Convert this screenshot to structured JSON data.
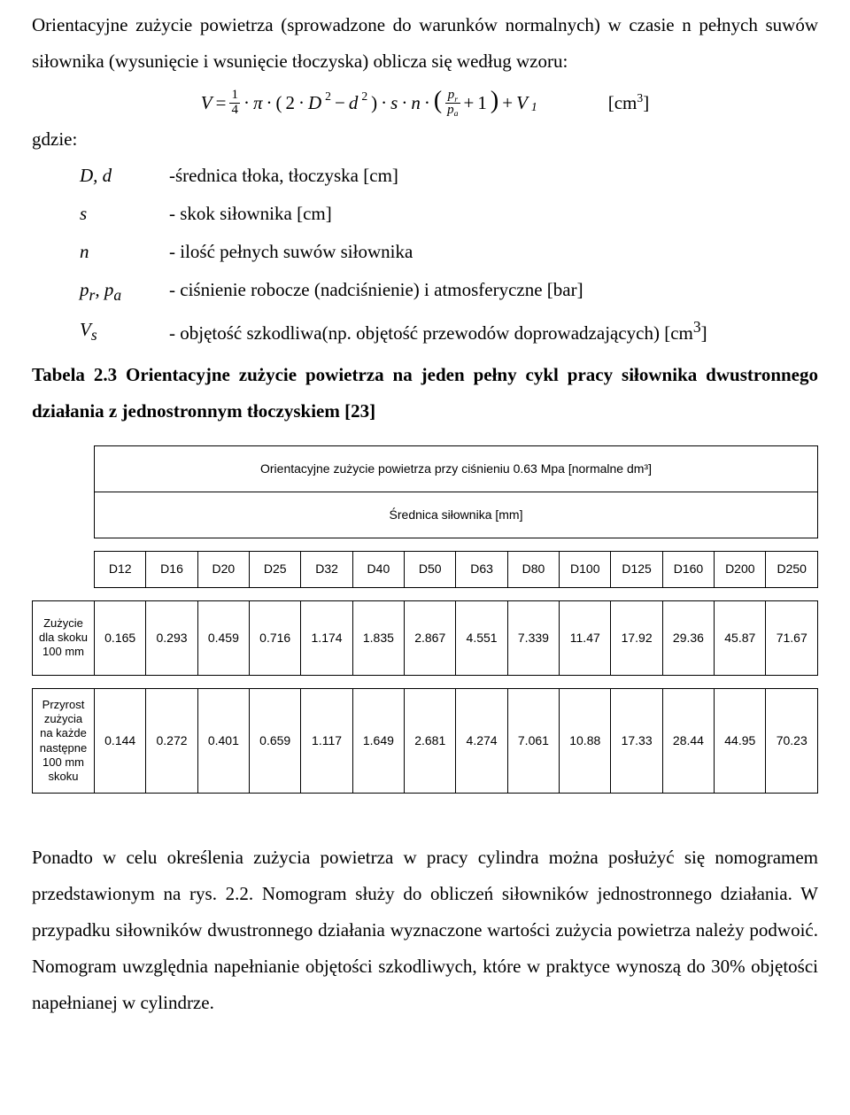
{
  "text": {
    "intro": "Orientacyjne zużycie powietrza (sprowadzone do warunków normalnych) w czasie n pełnych suwów siłownika (wysunięcie i wsunięcie tłoczyska) oblicza się według wzoru:",
    "gdzie": "gdzie:",
    "unit": "[cm",
    "unit_sup": "3",
    "unit_close": "]"
  },
  "formula": {
    "V": "V",
    "eq": "=",
    "frac1_num": "1",
    "frac1_den": "4",
    "dot": "·",
    "pi": "π",
    "lparen": "(",
    "two": "2",
    "D": "D",
    "sq": "2",
    "minus": "−",
    "d": "d",
    "rparen": ")",
    "s": "s",
    "n": "n",
    "bigl": "(",
    "pr_num": "p",
    "pr_num_sub": "r",
    "pa_den": "p",
    "pa_den_sub": "a",
    "plus": "+",
    "one": "1",
    "bigr": ")",
    "V1": "V",
    "V1_sub": "1"
  },
  "defs": [
    {
      "sym": "D, d",
      "txt": "-średnica tłoka, tłoczyska [cm]"
    },
    {
      "sym": "s",
      "txt": "- skok siłownika [cm]"
    },
    {
      "sym": "n",
      "txt": "- ilość pełnych suwów siłownika"
    },
    {
      "sym": "p<sub>r</sub>, p<sub>a</sub>",
      "txt": "- ciśnienie robocze (nadciśnienie) i atmosferyczne [bar]"
    },
    {
      "sym": "V<sub>s</sub>",
      "txt": "- objętość szkodliwa(np. objętość przewodów doprowadzających) [cm<sup>3</sup>]"
    }
  ],
  "caption": "Tabela 2.3 Orientacyjne zużycie powietrza na jeden pełny cykl pracy siłownika dwustronnego działania z jednostronnym tłoczyskiem [23]",
  "table": {
    "title": "Orientacyjne zużycie powietrza przy ciśnieniu 0.63 Mpa [normalne dm³]",
    "subtitle": "Średnica siłownika [mm]",
    "columns": [
      "D12",
      "D16",
      "D20",
      "D25",
      "D32",
      "D40",
      "D50",
      "D63",
      "D80",
      "D100",
      "D125",
      "D160",
      "D200",
      "D250"
    ],
    "rows": [
      {
        "header": "Zużycie dla skoku 100 mm",
        "values": [
          "0.165",
          "0.293",
          "0.459",
          "0.716",
          "1.174",
          "1.835",
          "2.867",
          "4.551",
          "7.339",
          "11.47",
          "17.92",
          "29.36",
          "45.87",
          "71.67"
        ]
      },
      {
        "header": "Przyrost zużycia na każde następne 100 mm skoku",
        "values": [
          "0.144",
          "0.272",
          "0.401",
          "0.659",
          "1.117",
          "1.649",
          "2.681",
          "4.274",
          "7.061",
          "10.88",
          "17.33",
          "28.44",
          "44.95",
          "70.23"
        ]
      }
    ]
  },
  "para2": "Ponadto w celu określenia zużycia powietrza w pracy cylindra można posłużyć się nomogramem przedstawionym na rys. 2.2. Nomogram służy do obliczeń siłowników jednostronnego działania. W przypadku siłowników dwustronnego działania wyznaczone wartości zużycia powietrza należy podwoić. Nomogram uwzględnia napełnianie objętości szkodliwych, które w praktyce wynoszą do 30% objętości napełnianej w cylindrze."
}
